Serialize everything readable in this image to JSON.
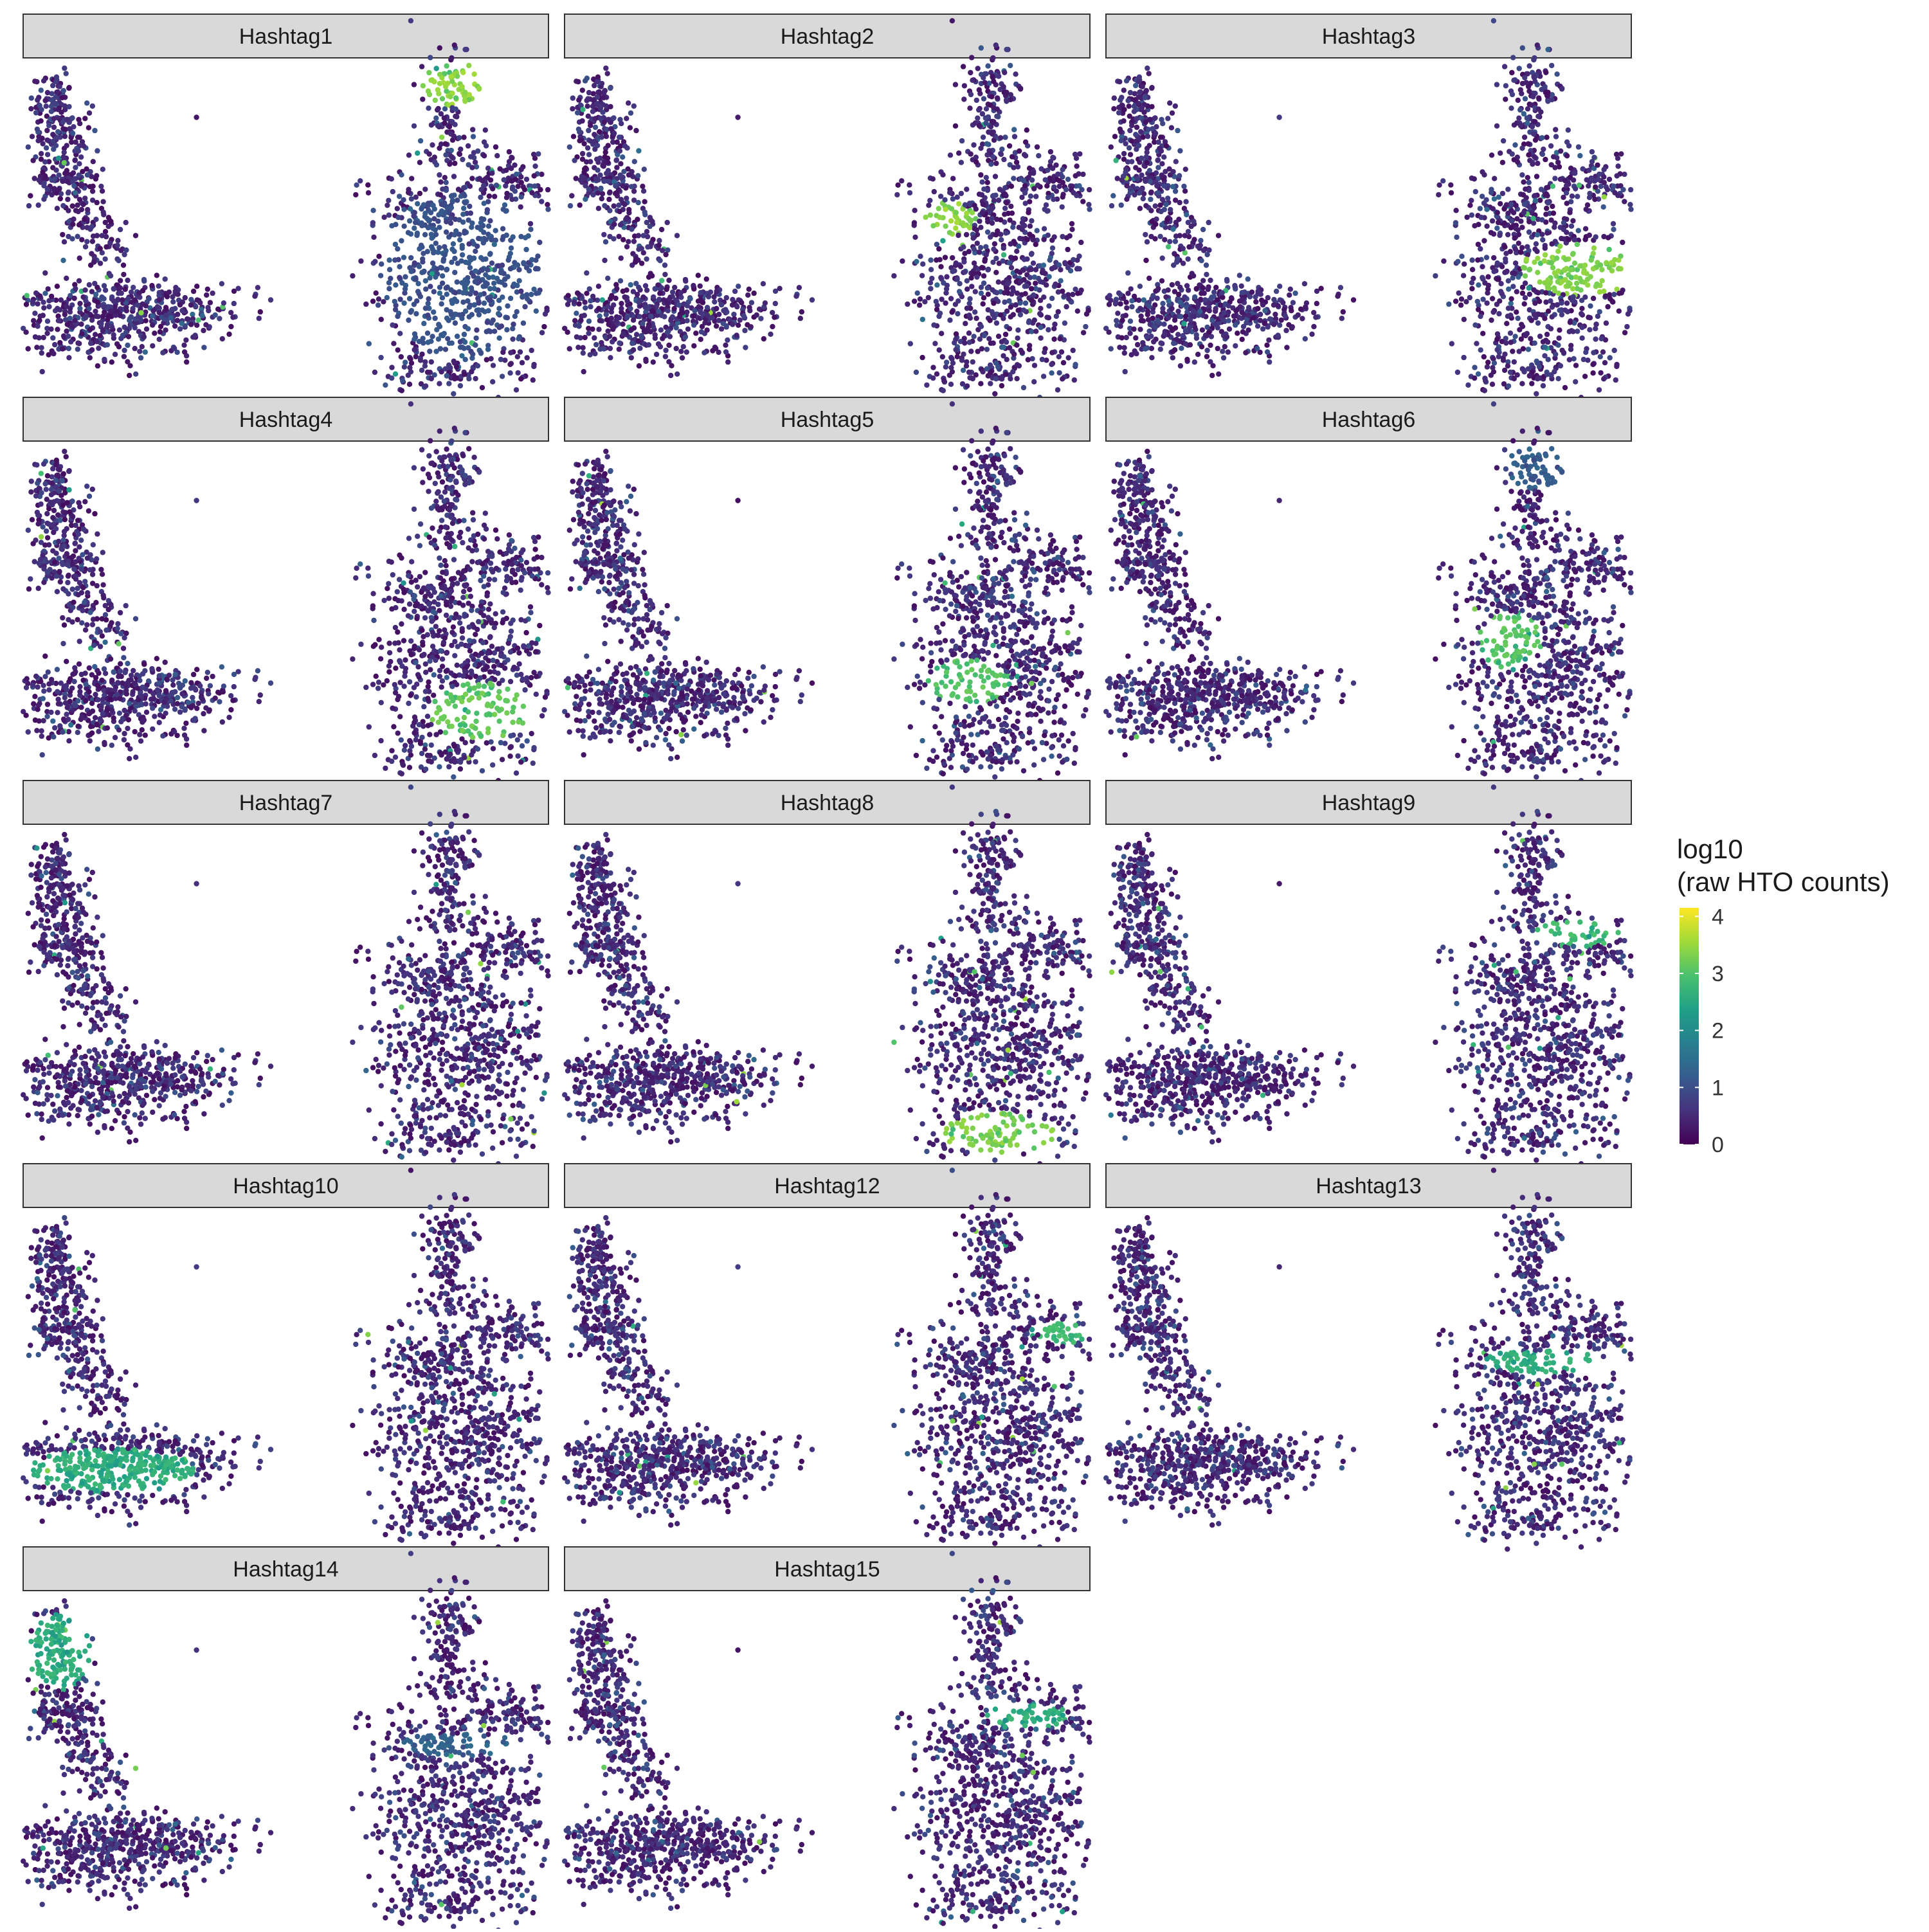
{
  "chart_data": {
    "type": "scatter",
    "title": "",
    "xlabel": "",
    "ylabel": "",
    "grid": false,
    "legend_placement": "right",
    "facets": [
      {
        "label": "Hashtag1",
        "hotspots": [
          {
            "region": "top-head",
            "level": 3.6
          },
          {
            "region": "right-body",
            "level": 1.2
          }
        ]
      },
      {
        "label": "Hashtag2",
        "hotspots": [
          {
            "region": "left-lobe",
            "level": 3.6
          }
        ]
      },
      {
        "label": "Hashtag3",
        "hotspots": [
          {
            "region": "mid-right",
            "level": 3.5
          }
        ]
      },
      {
        "label": "Hashtag4",
        "hotspots": [
          {
            "region": "lower-right",
            "level": 3.3
          }
        ]
      },
      {
        "label": "Hashtag5",
        "hotspots": [
          {
            "region": "left-lower",
            "level": 3.2
          }
        ]
      },
      {
        "label": "Hashtag6",
        "hotspots": [
          {
            "region": "mid-left",
            "level": 3.2
          },
          {
            "region": "top-head",
            "level": 1.4
          }
        ]
      },
      {
        "label": "Hashtag7",
        "hotspots": []
      },
      {
        "label": "Hashtag8",
        "hotspots": [
          {
            "region": "bottom",
            "level": 3.5
          }
        ]
      },
      {
        "label": "Hashtag9",
        "hotspots": [
          {
            "region": "upper-arm",
            "level": 3.0
          }
        ]
      },
      {
        "label": "Hashtag10",
        "hotspots": [
          {
            "region": "left-cluster-bottom",
            "level": 2.8
          }
        ]
      },
      {
        "label": "Hashtag12",
        "hotspots": [
          {
            "region": "right-tip",
            "level": 3.0
          }
        ]
      },
      {
        "label": "Hashtag13",
        "hotspots": [
          {
            "region": "band",
            "level": 2.8
          }
        ]
      },
      {
        "label": "Hashtag14",
        "hotspots": [
          {
            "region": "band",
            "level": 1.5
          },
          {
            "region": "left-cluster-top",
            "level": 2.8
          }
        ]
      },
      {
        "label": "Hashtag15",
        "hotspots": [
          {
            "region": "right-arm",
            "level": 2.8
          }
        ]
      }
    ],
    "colorbar": {
      "title_line1": "log10",
      "title_line2": "(raw HTO counts)",
      "range": [
        0,
        4.15
      ],
      "ticks": [
        {
          "value": 0,
          "label": "0"
        },
        {
          "value": 1,
          "label": "1"
        },
        {
          "value": 2,
          "label": "2"
        },
        {
          "value": 3,
          "label": "3"
        },
        {
          "value": 4,
          "label": "4"
        }
      ],
      "palette": [
        "#440154",
        "#46327e",
        "#365c8d",
        "#277f8e",
        "#1fa187",
        "#4ac16d",
        "#a0da39",
        "#fde725"
      ]
    }
  }
}
